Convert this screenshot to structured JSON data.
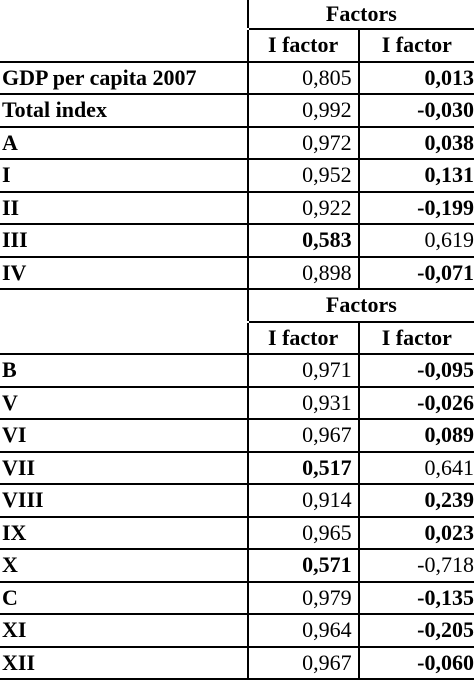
{
  "sections": [
    {
      "group_header": "Factors",
      "col_headers": [
        "I factor",
        "I factor"
      ],
      "rows": [
        {
          "label": "GDP per capita 2007",
          "v1": "0,805",
          "v1_bold": false,
          "v2": "0,013",
          "v2_bold": true
        },
        {
          "label": "Total index",
          "v1": "0,992",
          "v1_bold": false,
          "v2": "-0,030",
          "v2_bold": true
        },
        {
          "label": "A",
          "v1": "0,972",
          "v1_bold": false,
          "v2": "0,038",
          "v2_bold": true
        },
        {
          "label": "I",
          "v1": "0,952",
          "v1_bold": false,
          "v2": "0,131",
          "v2_bold": true
        },
        {
          "label": "II",
          "v1": "0,922",
          "v1_bold": false,
          "v2": "-0,199",
          "v2_bold": true
        },
        {
          "label": "III",
          "v1": "0,583",
          "v1_bold": true,
          "v2": "0,619",
          "v2_bold": false
        },
        {
          "label": "IV",
          "v1": "0,898",
          "v1_bold": false,
          "v2": "-0,071",
          "v2_bold": true
        }
      ]
    },
    {
      "group_header": "Factors",
      "col_headers": [
        "I factor",
        "I factor"
      ],
      "rows": [
        {
          "label": "B",
          "v1": "0,971",
          "v1_bold": false,
          "v2": "-0,095",
          "v2_bold": true
        },
        {
          "label": "V",
          "v1": "0,931",
          "v1_bold": false,
          "v2": "-0,026",
          "v2_bold": true
        },
        {
          "label": "VI",
          "v1": "0,967",
          "v1_bold": false,
          "v2": "0,089",
          "v2_bold": true
        },
        {
          "label": "VII",
          "v1": "0,517",
          "v1_bold": true,
          "v2": "0,641",
          "v2_bold": false
        },
        {
          "label": "VIII",
          "v1": "0,914",
          "v1_bold": false,
          "v2": "0,239",
          "v2_bold": true
        },
        {
          "label": "IX",
          "v1": "0,965",
          "v1_bold": false,
          "v2": "0,023",
          "v2_bold": true
        },
        {
          "label": "X",
          "v1": "0,571",
          "v1_bold": true,
          "v2": "-0,718",
          "v2_bold": false
        },
        {
          "label": "C",
          "v1": "0,979",
          "v1_bold": false,
          "v2": "-0,135",
          "v2_bold": true
        },
        {
          "label": "XI",
          "v1": "0,964",
          "v1_bold": false,
          "v2": "-0,205",
          "v2_bold": true
        },
        {
          "label": "XII",
          "v1": "0,967",
          "v1_bold": false,
          "v2": "-0,060",
          "v2_bold": true
        }
      ]
    }
  ]
}
